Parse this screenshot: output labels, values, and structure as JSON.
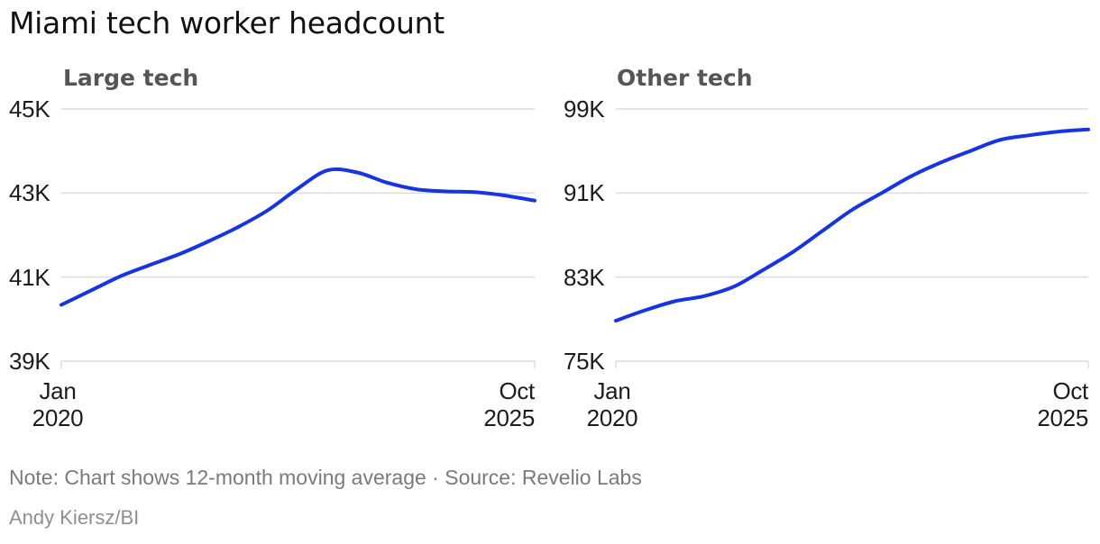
{
  "title": "Miami tech worker headcount",
  "note": "Note: Chart shows 12-month moving average · Source: Revelio Labs",
  "credit": "Andy Kiersz/BI",
  "colors": {
    "background": "#ffffff",
    "line": "#1633e6",
    "grid": "#dcdcdc",
    "title_text": "#111111",
    "subtitle_text": "#555555",
    "axis_text": "#1c1c1c",
    "note_text": "#7a7a7a",
    "credit_text": "#8e8e93"
  },
  "x_axis": {
    "start_month": "Jan",
    "start_year": "2020",
    "end_month": "Oct",
    "end_year": "2025"
  },
  "chart_data": [
    {
      "type": "line",
      "title": "Large tech",
      "x_start": "Jan 2020",
      "x_end": "Oct 2025",
      "x_note": "17 evenly spaced points from Jan 2020 to Oct 2025, 12-month moving average",
      "y_tick_labels": [
        "45K",
        "43K",
        "41K",
        "39K"
      ],
      "y_tick_values": [
        45000,
        43000,
        41000,
        39000
      ],
      "ylim": [
        39000,
        45000
      ],
      "grid": true,
      "legend": "none",
      "values": [
        40340,
        40680,
        41020,
        41290,
        41550,
        41860,
        42200,
        42600,
        43110,
        43540,
        43490,
        43250,
        43090,
        43040,
        43020,
        42940,
        42820
      ]
    },
    {
      "type": "line",
      "title": "Other tech",
      "x_start": "Jan 2020",
      "x_end": "Oct 2025",
      "x_note": "17 evenly spaced points from Jan 2020 to Oct 2025, 12-month moving average",
      "y_tick_labels": [
        "99K",
        "91K",
        "83K",
        "75K"
      ],
      "y_tick_values": [
        99000,
        91000,
        83000,
        75000
      ],
      "ylim": [
        75000,
        99000
      ],
      "grid": true,
      "legend": "none",
      "values": [
        78850,
        79850,
        80700,
        81200,
        82100,
        83700,
        85400,
        87400,
        89400,
        91000,
        92600,
        93900,
        95000,
        96050,
        96500,
        96850,
        97050
      ]
    }
  ]
}
